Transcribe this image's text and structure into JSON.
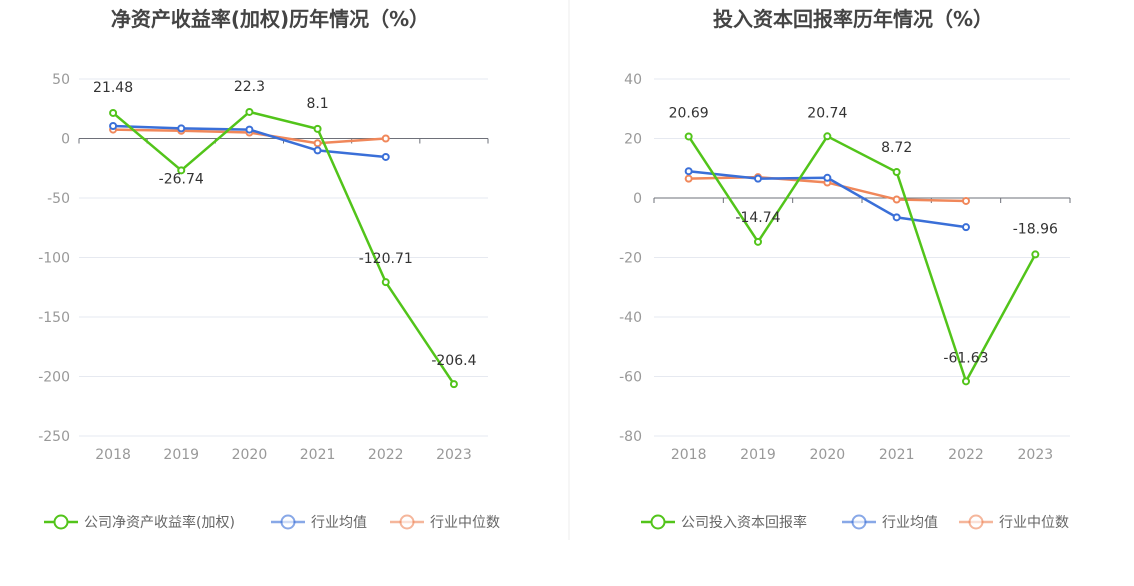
{
  "colors": {
    "company": "#52c41a",
    "avg": "#3a6fd8",
    "median": "#f0875a"
  },
  "chart_data": [
    {
      "type": "line",
      "title": "净资产收益率(加权)历年情况（%）",
      "categories": [
        "2018",
        "2019",
        "2020",
        "2021",
        "2022",
        "2023"
      ],
      "yticks": [
        "50",
        "0",
        "-50",
        "-100",
        "-150",
        "-200",
        "-250"
      ],
      "ylim": [
        -250,
        50
      ],
      "grid": true,
      "legend_position": "bottom",
      "series": [
        {
          "name": "公司净资产收益率(加权)",
          "values": [
            21.48,
            -26.74,
            22.3,
            8.1,
            -120.71,
            -206.4
          ],
          "labels": [
            "21.48",
            "-26.74",
            "22.3",
            "8.1",
            "-120.71",
            "-206.4"
          ]
        },
        {
          "name": "行业均值",
          "values": [
            10.5,
            8.5,
            7.5,
            -10.0,
            -15.5,
            null
          ]
        },
        {
          "name": "行业中位数",
          "values": [
            7.5,
            6.5,
            5.0,
            -4.0,
            0.0,
            null
          ]
        }
      ]
    },
    {
      "type": "line",
      "title": "投入资本回报率历年情况（%）",
      "categories": [
        "2018",
        "2019",
        "2020",
        "2021",
        "2022",
        "2023"
      ],
      "yticks": [
        "40",
        "20",
        "0",
        "-20",
        "-40",
        "-60",
        "-80"
      ],
      "ylim": [
        -80,
        40
      ],
      "grid": true,
      "legend_position": "bottom",
      "series": [
        {
          "name": "公司投入资本回报率",
          "values": [
            20.69,
            -14.74,
            20.74,
            8.72,
            -61.63,
            -18.96
          ],
          "labels": [
            "20.69",
            "-14.74",
            "20.74",
            "8.72",
            "-61.63",
            "-18.96"
          ]
        },
        {
          "name": "行业均值",
          "values": [
            9.0,
            6.5,
            6.8,
            -6.5,
            -9.8,
            null
          ]
        },
        {
          "name": "行业中位数",
          "values": [
            6.5,
            7.0,
            5.2,
            -0.5,
            -1.0,
            null
          ]
        }
      ]
    }
  ]
}
